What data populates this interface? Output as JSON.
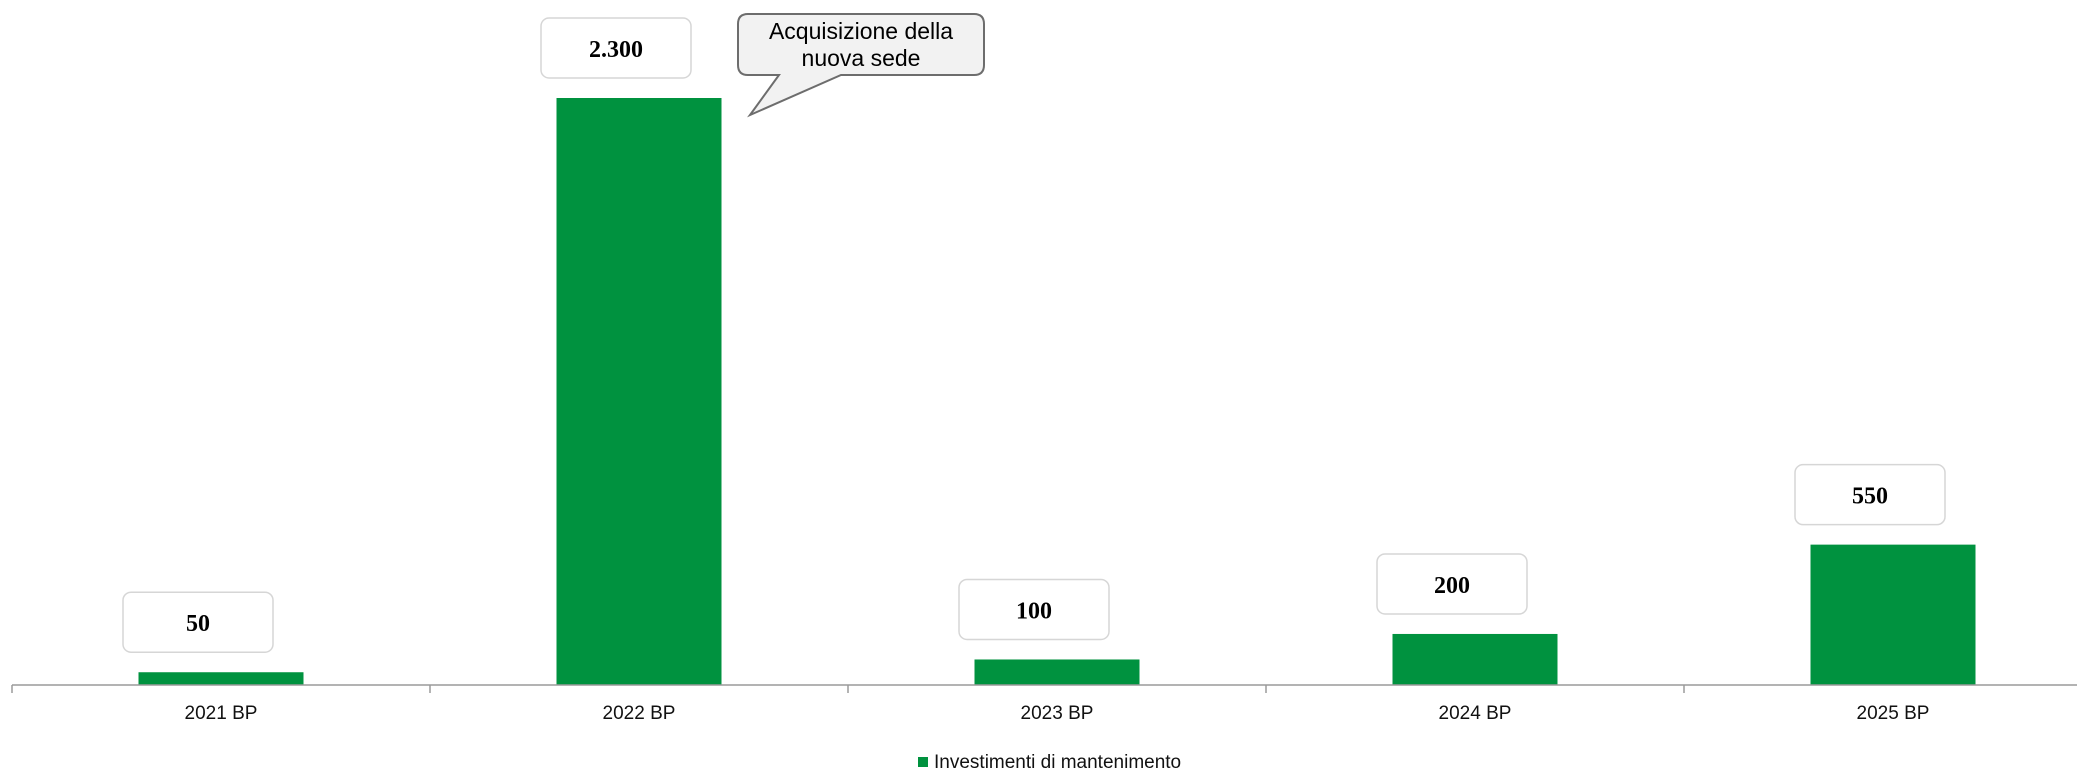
{
  "chart_data": {
    "type": "bar",
    "categories": [
      "2021 BP",
      "2022 BP",
      "2023 BP",
      "2024 BP",
      "2025 BP"
    ],
    "series": [
      {
        "name": "Investimenti di mantenimento",
        "values": [
          50,
          2300,
          100,
          200,
          550
        ],
        "value_labels": [
          "50",
          "2.300",
          "100",
          "200",
          "550"
        ],
        "color": "#00923f"
      }
    ],
    "ylim": [
      0,
      2300
    ],
    "grid": false,
    "legend": "bottom-center",
    "annotations": [
      {
        "category": "2022 BP",
        "lines": [
          "Acquisizione della",
          "nuova sede"
        ]
      }
    ]
  }
}
